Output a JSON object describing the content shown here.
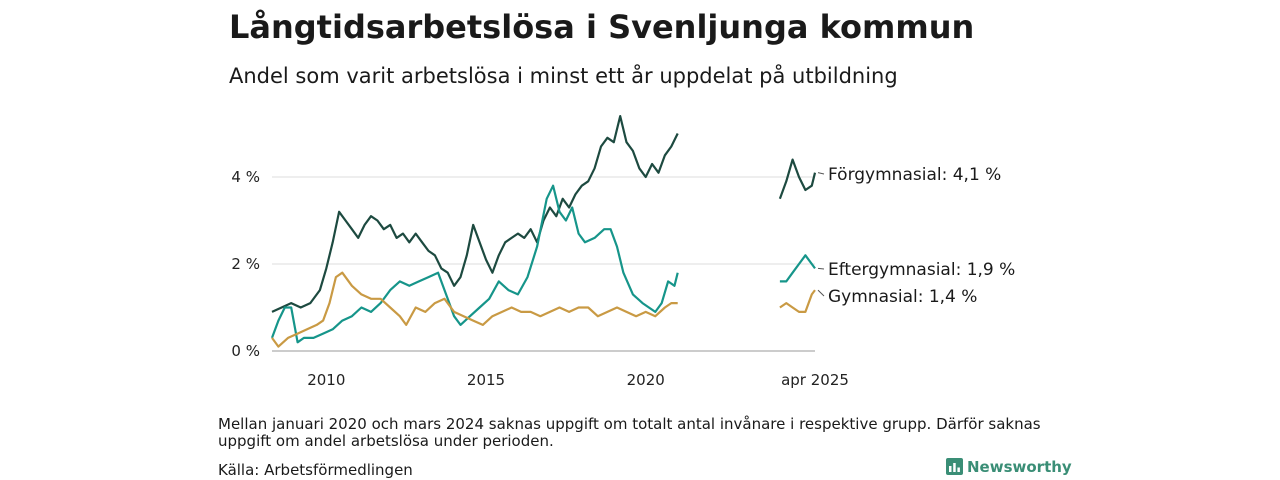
{
  "title": "Långtidsarbetslösa i Svenljunga kommun",
  "subtitle": "Andel som varit arbetslösa i minst ett år uppdelat på utbildning",
  "note": "Mellan januari 2020 och mars 2024 saknas uppgift om totalt antal invånare i respektive grupp. Därför saknas uppgift om andel arbetslösa under perioden.",
  "source": "Källa: Arbetsförmedlingen",
  "brand": "Newsworthy",
  "chart_data": {
    "type": "line",
    "x_ticks": [
      "2010",
      "2015",
      "2020",
      "apr 2025"
    ],
    "y_ticks": [
      "0 %",
      "2 %",
      "4 %"
    ],
    "ylim": [
      0,
      6
    ],
    "grid": "horizontal",
    "gap": [
      "2020-01",
      "2024-03"
    ],
    "series": [
      {
        "name": "Förgymnasial",
        "label": "Förgymnasial: 4,1 %",
        "color": "#1d4a40",
        "points": [
          [
            2008.3,
            0.9
          ],
          [
            2008.6,
            1.0
          ],
          [
            2008.9,
            1.1
          ],
          [
            2009.2,
            1.0
          ],
          [
            2009.5,
            1.1
          ],
          [
            2009.8,
            1.4
          ],
          [
            2010.0,
            1.9
          ],
          [
            2010.2,
            2.5
          ],
          [
            2010.4,
            3.2
          ],
          [
            2010.6,
            3.0
          ],
          [
            2010.8,
            2.8
          ],
          [
            2011.0,
            2.6
          ],
          [
            2011.2,
            2.9
          ],
          [
            2011.4,
            3.1
          ],
          [
            2011.6,
            3.0
          ],
          [
            2011.8,
            2.8
          ],
          [
            2012.0,
            2.9
          ],
          [
            2012.2,
            2.6
          ],
          [
            2012.4,
            2.7
          ],
          [
            2012.6,
            2.5
          ],
          [
            2012.8,
            2.7
          ],
          [
            2013.0,
            2.5
          ],
          [
            2013.2,
            2.3
          ],
          [
            2013.4,
            2.2
          ],
          [
            2013.6,
            1.9
          ],
          [
            2013.8,
            1.8
          ],
          [
            2014.0,
            1.5
          ],
          [
            2014.2,
            1.7
          ],
          [
            2014.4,
            2.2
          ],
          [
            2014.6,
            2.9
          ],
          [
            2014.8,
            2.5
          ],
          [
            2015.0,
            2.1
          ],
          [
            2015.2,
            1.8
          ],
          [
            2015.4,
            2.2
          ],
          [
            2015.6,
            2.5
          ],
          [
            2015.8,
            2.6
          ],
          [
            2016.0,
            2.7
          ],
          [
            2016.2,
            2.6
          ],
          [
            2016.4,
            2.8
          ],
          [
            2016.6,
            2.5
          ],
          [
            2016.8,
            3.0
          ],
          [
            2017.0,
            3.3
          ],
          [
            2017.2,
            3.1
          ],
          [
            2017.4,
            3.5
          ],
          [
            2017.6,
            3.3
          ],
          [
            2017.8,
            3.6
          ],
          [
            2018.0,
            3.8
          ],
          [
            2018.2,
            3.9
          ],
          [
            2018.4,
            4.2
          ],
          [
            2018.6,
            4.7
          ],
          [
            2018.8,
            4.9
          ],
          [
            2019.0,
            4.8
          ],
          [
            2019.2,
            5.4
          ],
          [
            2019.4,
            4.8
          ],
          [
            2019.6,
            4.6
          ],
          [
            2019.8,
            4.2
          ],
          [
            2020.0,
            4.0
          ],
          [
            2020.2,
            4.3
          ],
          [
            2020.4,
            4.1
          ],
          [
            2020.6,
            4.5
          ],
          [
            2020.8,
            4.7
          ],
          [
            2021.0,
            5.0
          ],
          null,
          [
            2024.2,
            3.5
          ],
          [
            2024.4,
            3.9
          ],
          [
            2024.6,
            4.4
          ],
          [
            2024.8,
            4.0
          ],
          [
            2025.0,
            3.7
          ],
          [
            2025.2,
            3.8
          ],
          [
            2025.3,
            4.1
          ]
        ]
      },
      {
        "name": "Eftergymnasial",
        "label": "Eftergymnasial: 1,9 %",
        "color": "#16958a",
        "points": [
          [
            2008.3,
            0.3
          ],
          [
            2008.5,
            0.7
          ],
          [
            2008.7,
            1.0
          ],
          [
            2008.9,
            1.0
          ],
          [
            2009.1,
            0.2
          ],
          [
            2009.3,
            0.3
          ],
          [
            2009.6,
            0.3
          ],
          [
            2009.9,
            0.4
          ],
          [
            2010.2,
            0.5
          ],
          [
            2010.5,
            0.7
          ],
          [
            2010.8,
            0.8
          ],
          [
            2011.1,
            1.0
          ],
          [
            2011.4,
            0.9
          ],
          [
            2011.7,
            1.1
          ],
          [
            2012.0,
            1.4
          ],
          [
            2012.3,
            1.6
          ],
          [
            2012.6,
            1.5
          ],
          [
            2012.9,
            1.6
          ],
          [
            2013.2,
            1.7
          ],
          [
            2013.5,
            1.8
          ],
          [
            2013.8,
            1.2
          ],
          [
            2014.0,
            0.8
          ],
          [
            2014.2,
            0.6
          ],
          [
            2014.5,
            0.8
          ],
          [
            2014.8,
            1.0
          ],
          [
            2015.1,
            1.2
          ],
          [
            2015.4,
            1.6
          ],
          [
            2015.7,
            1.4
          ],
          [
            2016.0,
            1.3
          ],
          [
            2016.3,
            1.7
          ],
          [
            2016.6,
            2.4
          ],
          [
            2016.9,
            3.5
          ],
          [
            2017.1,
            3.8
          ],
          [
            2017.3,
            3.2
          ],
          [
            2017.5,
            3.0
          ],
          [
            2017.7,
            3.3
          ],
          [
            2017.9,
            2.7
          ],
          [
            2018.1,
            2.5
          ],
          [
            2018.4,
            2.6
          ],
          [
            2018.7,
            2.8
          ],
          [
            2018.9,
            2.8
          ],
          [
            2019.1,
            2.4
          ],
          [
            2019.3,
            1.8
          ],
          [
            2019.6,
            1.3
          ],
          [
            2019.9,
            1.1
          ],
          [
            2020.1,
            1.0
          ],
          [
            2020.3,
            0.9
          ],
          [
            2020.5,
            1.1
          ],
          [
            2020.7,
            1.6
          ],
          [
            2020.9,
            1.5
          ],
          [
            2021.0,
            1.8
          ],
          null,
          [
            2024.2,
            1.6
          ],
          [
            2024.4,
            1.6
          ],
          [
            2024.6,
            1.8
          ],
          [
            2024.8,
            2.0
          ],
          [
            2025.0,
            2.2
          ],
          [
            2025.2,
            2.0
          ],
          [
            2025.3,
            1.9
          ]
        ]
      },
      {
        "name": "Gymnasial",
        "label": "Gymnasial: 1,4 %",
        "color": "#c99a44",
        "points": [
          [
            2008.3,
            0.3
          ],
          [
            2008.5,
            0.1
          ],
          [
            2008.8,
            0.3
          ],
          [
            2009.1,
            0.4
          ],
          [
            2009.4,
            0.5
          ],
          [
            2009.7,
            0.6
          ],
          [
            2009.9,
            0.7
          ],
          [
            2010.1,
            1.1
          ],
          [
            2010.3,
            1.7
          ],
          [
            2010.5,
            1.8
          ],
          [
            2010.8,
            1.5
          ],
          [
            2011.1,
            1.3
          ],
          [
            2011.4,
            1.2
          ],
          [
            2011.7,
            1.2
          ],
          [
            2012.0,
            1.0
          ],
          [
            2012.3,
            0.8
          ],
          [
            2012.5,
            0.6
          ],
          [
            2012.8,
            1.0
          ],
          [
            2013.1,
            0.9
          ],
          [
            2013.4,
            1.1
          ],
          [
            2013.7,
            1.2
          ],
          [
            2014.0,
            0.9
          ],
          [
            2014.3,
            0.8
          ],
          [
            2014.6,
            0.7
          ],
          [
            2014.9,
            0.6
          ],
          [
            2015.2,
            0.8
          ],
          [
            2015.5,
            0.9
          ],
          [
            2015.8,
            1.0
          ],
          [
            2016.1,
            0.9
          ],
          [
            2016.4,
            0.9
          ],
          [
            2016.7,
            0.8
          ],
          [
            2017.0,
            0.9
          ],
          [
            2017.3,
            1.0
          ],
          [
            2017.6,
            0.9
          ],
          [
            2017.9,
            1.0
          ],
          [
            2018.2,
            1.0
          ],
          [
            2018.5,
            0.8
          ],
          [
            2018.8,
            0.9
          ],
          [
            2019.1,
            1.0
          ],
          [
            2019.4,
            0.9
          ],
          [
            2019.7,
            0.8
          ],
          [
            2020.0,
            0.9
          ],
          [
            2020.3,
            0.8
          ],
          [
            2020.6,
            1.0
          ],
          [
            2020.8,
            1.1
          ],
          [
            2021.0,
            1.1
          ],
          null,
          [
            2024.2,
            1.0
          ],
          [
            2024.4,
            1.1
          ],
          [
            2024.6,
            1.0
          ],
          [
            2024.8,
            0.9
          ],
          [
            2025.0,
            0.9
          ],
          [
            2025.2,
            1.3
          ],
          [
            2025.3,
            1.4
          ]
        ]
      }
    ]
  }
}
